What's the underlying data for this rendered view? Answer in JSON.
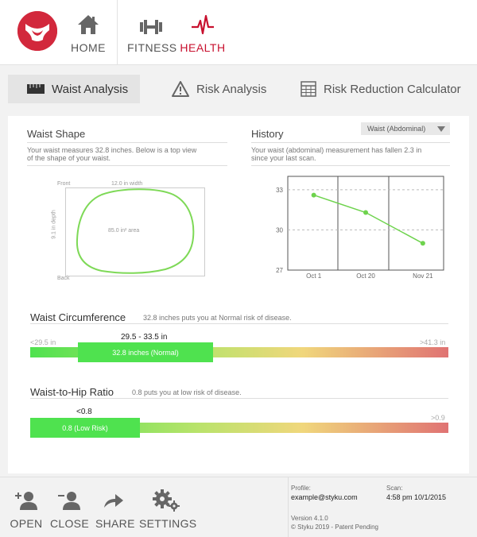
{
  "nav": {
    "home": "HOME",
    "fitness": "FITNESS",
    "health": "HEALTH",
    "accent_color": "#c8102e"
  },
  "tabs": [
    {
      "label": "Waist Analysis",
      "icon": "tape-measure-icon",
      "active": true
    },
    {
      "label": "Risk Analysis",
      "icon": "warning-icon",
      "active": false
    },
    {
      "label": "Risk Reduction Calculator",
      "icon": "calculator-icon",
      "active": false
    }
  ],
  "waist_shape": {
    "title": "Waist Shape",
    "desc_line1": "Your waist measures 32.8 inches. Below is a top view",
    "desc_line2": "of the shape of your waist.",
    "front": "Front",
    "back": "Back",
    "width_label": "12.0 in width",
    "depth_label": "9.1 in depth",
    "area_label": "85.0 in² area"
  },
  "history": {
    "title": "History",
    "dropdown_value": "Waist (Abdominal)",
    "desc_line1": "Your waist (abdominal) measurement has fallen 2.3 in",
    "desc_line2": "since your last scan.",
    "chart_data": {
      "type": "line",
      "categories": [
        "Oct 1",
        "Oct 20",
        "Nov 21"
      ],
      "x_positions": [
        0.5,
        1.5,
        2.6
      ],
      "values": [
        32.6,
        31.3,
        29.0
      ],
      "yticks": [
        "33",
        "30",
        "27"
      ],
      "ylim": [
        27,
        34
      ],
      "color": "#6ed34d"
    }
  },
  "waist_circ": {
    "title": "Waist Circumference",
    "desc": "32.8 inches puts you at Normal risk of disease.",
    "low_label": "<29.5 in",
    "high_label": ">41.3 in",
    "range_label": "29.5 - 33.5 in",
    "marker_label": "32.8 inches (Normal)"
  },
  "whr": {
    "title": "Waist-to-Hip Ratio",
    "desc": "0.8 puts you at low risk of disease.",
    "range_label": "<0.8",
    "high_label": ">0.9",
    "marker_label": "0.8 (Low Risk)"
  },
  "footer": {
    "open": "OPEN",
    "close": "CLOSE",
    "share": "SHARE",
    "settings": "SETTINGS",
    "profile_label": "Profile:",
    "profile_value": "example@styku.com",
    "scan_label": "Scan:",
    "scan_value": "4:58 pm 10/1/2015",
    "version": "Version 4.1.0",
    "copyright": "© Styku 2019 - Patent Pending"
  }
}
